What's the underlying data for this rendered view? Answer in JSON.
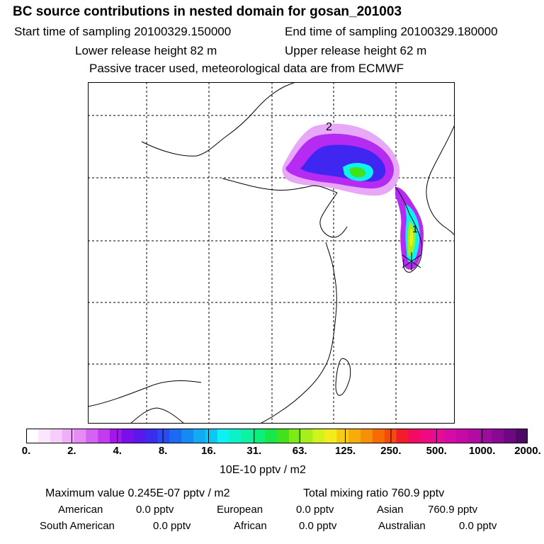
{
  "header": {
    "title": "BC  source contributions in nested domain for gosan_201003",
    "start_time": "Start time of sampling 20100329.150000",
    "end_time": "End time of sampling 20100329.180000",
    "lower_release": "Lower release height   82 m",
    "upper_release": "Upper release height   62 m",
    "note": "Passive tracer used, meteorological data are from ECMWF"
  },
  "map": {
    "labels": [
      "2",
      "1"
    ],
    "plume_colors": {
      "outer": "#e7a8f7",
      "mid": "#b52bf2",
      "inner": "#3f26f0",
      "core": "#0cf2f0",
      "peak": "#a6ef1a",
      "max": "#e8f21c"
    }
  },
  "chart_data": {
    "type": "heatmap",
    "title": "BC  source contributions in nested domain for gosan_201003",
    "colorbar": {
      "tick_labels": [
        "0.",
        "2.",
        "4.",
        "8.",
        "16.",
        "31.",
        "63.",
        "125.",
        "250.",
        "500.",
        "1000.",
        "2000."
      ],
      "units": "10E-10 pptv / m2",
      "colors": [
        "#ffffff",
        "#fbe6fd",
        "#f6cdfb",
        "#efaef7",
        "#e68bf5",
        "#d463f3",
        "#c23bf0",
        "#a316ec",
        "#7b0feb",
        "#5a18ee",
        "#3c2cf0",
        "#2a4bf2",
        "#1a6af3",
        "#168af3",
        "#12aaf4",
        "#0ec6f3",
        "#0cf2f0",
        "#0cf2c8",
        "#0cf2a0",
        "#0cef7a",
        "#16e848",
        "#41e21a",
        "#7cea16",
        "#a6ef1a",
        "#d2f21c",
        "#f4ec1a",
        "#f6cc10",
        "#f7ac0a",
        "#f79006",
        "#f76b06",
        "#f54a0a",
        "#f31c2c",
        "#f30a62",
        "#ef0a82",
        "#e60c98",
        "#d60aa4",
        "#c70aa6",
        "#b40aa4",
        "#9e0c9e",
        "#880a92",
        "#6e0880",
        "#500868"
      ]
    },
    "maximum_value": "Maximum value  0.245E-07 pptv / m2",
    "total_mixing_ratio": "Total mixing ratio      760.9 pptv",
    "regions": [
      {
        "name": "American",
        "value": "0.0 pptv"
      },
      {
        "name": "European",
        "value": "0.0 pptv"
      },
      {
        "name": "Asian",
        "value": "760.9 pptv"
      },
      {
        "name": "South American",
        "value": "0.0 pptv"
      },
      {
        "name": "African",
        "value": "0.0 pptv"
      },
      {
        "name": "Australian",
        "value": "0.0 pptv"
      }
    ]
  }
}
